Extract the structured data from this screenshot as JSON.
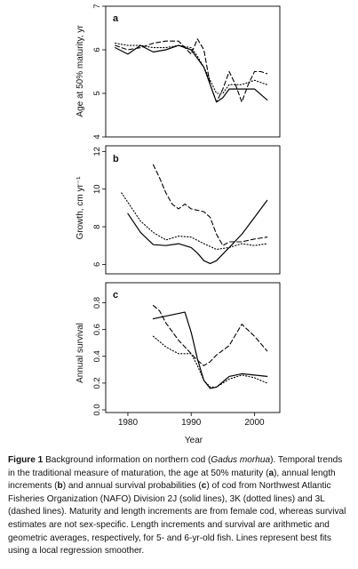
{
  "caption": {
    "label": "Figure 1",
    "p1": "Background information on northern cod (",
    "species": "Gadus morhua",
    "p2": "). Temporal trends in the traditional measure of maturation, the age at 50% maturity (",
    "a": "a",
    "p3": "), annual length increments (",
    "b": "b",
    "p4": ") and annual survival probabilities (",
    "c": "c",
    "p5": ") of cod from Northwest Atlantic Fisheries Organization (NAFO) Division 2J (solid lines), 3K (dotted lines) and 3L (dashed lines). Maturity and length increments are from female cod, whereas survival estimates are not sex-specific. Length increments and survival are arithmetic and geometric averages, respectively, for 5- and 6-yr-old fish. Lines represent best fits using a local regression smoother."
  },
  "chart_data": [
    {
      "type": "line",
      "panel_label": "a",
      "ylabel": "Age at 50% maturity, yr",
      "yticks": [
        "4",
        "5",
        "6",
        "7"
      ],
      "ylim": [
        4,
        7
      ],
      "xlim": [
        1976.5,
        2004
      ],
      "series": [
        {
          "name": "2J",
          "style": "solid",
          "x": [
            1978,
            1980,
            1982,
            1984,
            1986,
            1988,
            1990,
            1991,
            1992,
            1994,
            1995,
            1996,
            1998,
            2000,
            2002
          ],
          "y": [
            6.05,
            5.9,
            6.1,
            5.95,
            6.0,
            6.1,
            6.0,
            5.8,
            5.6,
            4.8,
            4.9,
            5.1,
            5.1,
            5.1,
            4.85
          ]
        },
        {
          "name": "3K",
          "style": "dotted",
          "x": [
            1978,
            1980,
            1982,
            1984,
            1986,
            1988,
            1990,
            1991,
            1992,
            1994,
            1995,
            1996,
            1998,
            2000,
            2002
          ],
          "y": [
            6.15,
            6.1,
            6.1,
            6.05,
            6.05,
            6.1,
            6.05,
            5.85,
            5.6,
            5.0,
            5.0,
            5.2,
            5.2,
            5.3,
            5.2
          ]
        },
        {
          "name": "3L",
          "style": "dashed",
          "x": [
            1978,
            1980,
            1982,
            1984,
            1986,
            1988,
            1990,
            1991,
            1992,
            1993,
            1994,
            1995,
            1996,
            1997,
            1998,
            1999,
            2000,
            2001,
            2002
          ],
          "y": [
            6.1,
            6.0,
            6.05,
            6.15,
            6.2,
            6.2,
            5.9,
            6.25,
            6.0,
            5.2,
            4.8,
            5.1,
            5.5,
            5.2,
            4.8,
            5.2,
            5.5,
            5.5,
            5.45
          ]
        }
      ]
    },
    {
      "type": "line",
      "panel_label": "b",
      "ylabel": "Growth, cm yr⁻¹",
      "yticks": [
        "6",
        "8",
        "10",
        "12"
      ],
      "ylim": [
        5.5,
        12.3
      ],
      "xlim": [
        1976.5,
        2004
      ],
      "series": [
        {
          "name": "2J",
          "style": "solid",
          "x": [
            1980,
            1982,
            1984,
            1986,
            1988,
            1990,
            1991,
            1992,
            1993,
            1994,
            1996,
            1998,
            2000,
            2002
          ],
          "y": [
            8.7,
            7.7,
            7.05,
            7.0,
            7.1,
            6.9,
            6.6,
            6.2,
            6.05,
            6.2,
            6.9,
            7.6,
            8.5,
            9.4
          ]
        },
        {
          "name": "3K",
          "style": "dotted",
          "x": [
            1979,
            1980,
            1982,
            1984,
            1986,
            1988,
            1990,
            1992,
            1994,
            1996,
            1998,
            2000,
            2002
          ],
          "y": [
            9.8,
            9.3,
            8.3,
            7.7,
            7.3,
            7.5,
            7.45,
            7.1,
            6.8,
            6.9,
            7.1,
            7.0,
            7.1
          ]
        },
        {
          "name": "3L",
          "style": "dashed",
          "x": [
            1984,
            1985,
            1986,
            1987,
            1988,
            1989,
            1990,
            1992,
            1993,
            1994,
            1995,
            1996,
            1998,
            2000,
            2002
          ],
          "y": [
            11.3,
            10.6,
            9.8,
            9.2,
            8.95,
            9.2,
            8.95,
            8.8,
            8.5,
            7.6,
            7.0,
            7.2,
            7.2,
            7.35,
            7.45
          ]
        }
      ]
    },
    {
      "type": "line",
      "panel_label": "c",
      "ylabel": "Annual survival",
      "xlabel": "Year",
      "yticks": [
        "0.0",
        "0.2",
        "0.4",
        "0.6",
        "0.8"
      ],
      "xticks": [
        "1980",
        "1990",
        "2000"
      ],
      "ylim": [
        -0.02,
        0.95
      ],
      "xlim": [
        1976.5,
        2004
      ],
      "series": [
        {
          "name": "2J",
          "style": "solid",
          "x": [
            1984,
            1986,
            1988,
            1989,
            1990,
            1991,
            1992,
            1993,
            1994,
            1995,
            1996,
            1998,
            2000,
            2002
          ],
          "y": [
            0.68,
            0.7,
            0.72,
            0.73,
            0.58,
            0.38,
            0.22,
            0.16,
            0.17,
            0.21,
            0.25,
            0.27,
            0.26,
            0.25
          ]
        },
        {
          "name": "3K",
          "style": "dotted",
          "x": [
            1984,
            1986,
            1988,
            1990,
            1991,
            1992,
            1993,
            1994,
            1996,
            1998,
            2000,
            2002
          ],
          "y": [
            0.55,
            0.47,
            0.42,
            0.42,
            0.33,
            0.22,
            0.17,
            0.17,
            0.23,
            0.26,
            0.24,
            0.2
          ]
        },
        {
          "name": "3L",
          "style": "dashed",
          "x": [
            1984,
            1985,
            1986,
            1988,
            1990,
            1991,
            1992,
            1993,
            1994,
            1996,
            1998,
            2000,
            2002
          ],
          "y": [
            0.78,
            0.74,
            0.65,
            0.52,
            0.42,
            0.37,
            0.33,
            0.36,
            0.41,
            0.48,
            0.64,
            0.55,
            0.44
          ]
        }
      ]
    }
  ]
}
